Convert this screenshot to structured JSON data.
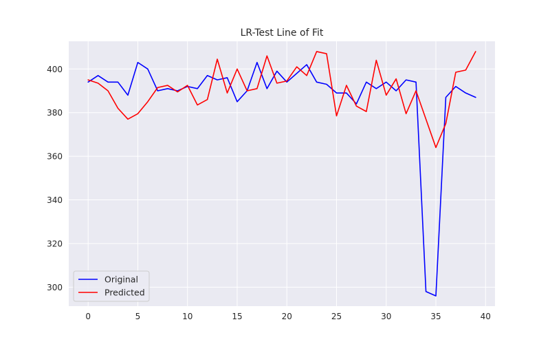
{
  "chart_data": {
    "type": "line",
    "title": "LR-Test Line of Fit",
    "xlabel": "",
    "ylabel": "",
    "xlim": [
      -1.95,
      40.95
    ],
    "ylim": [
      291.3,
      412.7
    ],
    "xticks": [
      0,
      5,
      10,
      15,
      20,
      25,
      30,
      35,
      40
    ],
    "yticks": [
      300,
      320,
      340,
      360,
      380,
      400
    ],
    "grid": true,
    "legend": "lower-left",
    "x": [
      0,
      1,
      2,
      3,
      4,
      5,
      6,
      7,
      8,
      9,
      10,
      11,
      12,
      13,
      14,
      15,
      16,
      17,
      18,
      19,
      20,
      21,
      22,
      23,
      24,
      25,
      26,
      27,
      28,
      29,
      30,
      31,
      32,
      33,
      34,
      35,
      36,
      37,
      38,
      39
    ],
    "series": [
      {
        "name": "Original",
        "color": "#0000ff",
        "values": [
          394,
          397,
          394,
          394,
          388,
          403,
          400,
          390,
          391,
          390,
          392,
          391,
          397,
          395,
          396,
          385,
          390,
          403,
          391,
          399,
          394,
          398,
          402,
          394,
          393,
          389,
          389,
          384,
          394,
          391,
          394,
          390,
          395,
          394,
          298,
          296,
          387,
          392,
          389,
          387
        ]
      },
      {
        "name": "Predicted",
        "color": "#ff0000",
        "values": [
          395,
          393.5,
          390,
          382,
          377,
          379.5,
          385,
          391.5,
          392.5,
          389.5,
          392.5,
          383.5,
          386,
          404.5,
          389,
          400,
          390,
          391,
          406,
          393.5,
          394.5,
          401,
          397,
          408,
          407,
          378.5,
          392.5,
          383,
          380.5,
          404,
          388,
          395.5,
          379.5,
          390,
          377,
          364,
          375,
          398.5,
          399.5,
          408
        ]
      }
    ]
  }
}
